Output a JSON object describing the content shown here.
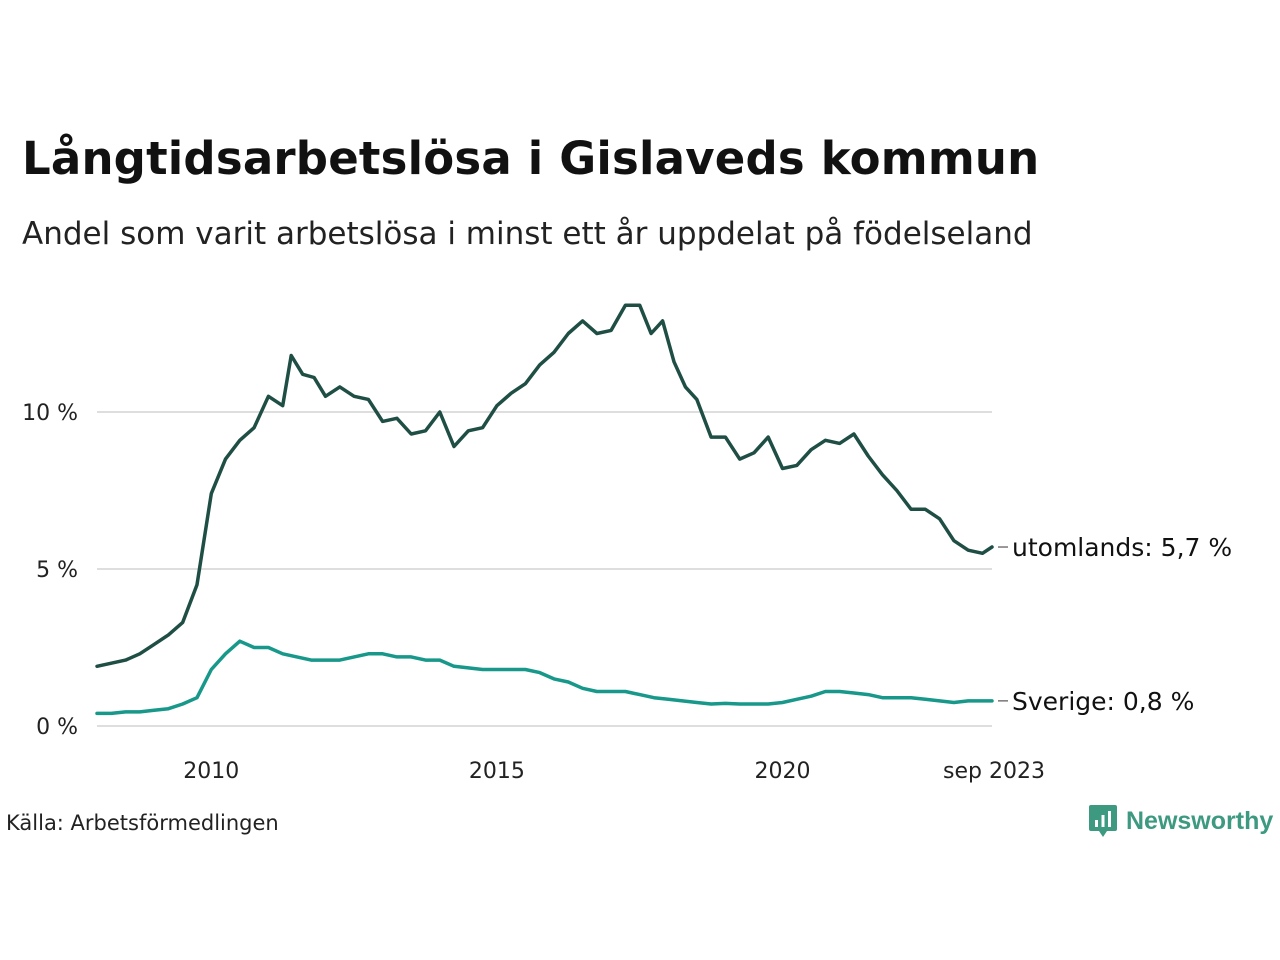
{
  "page": {
    "title": "Långtidsarbetslösa i Gislaveds kommun",
    "subtitle": "Andel som varit arbetslösa i minst ett år uppdelat på födelseland",
    "source": "Källa: Arbetsförmedlingen",
    "brand": "Newsworthy"
  },
  "chart_data": {
    "type": "line",
    "title": "Långtidsarbetslösa i Gislaveds kommun",
    "subtitle": "Andel som varit arbetslösa i minst ett år uppdelat på födelseland",
    "xlabel": "",
    "ylabel": "",
    "x_start": "2008-01",
    "x_end": "2023-09",
    "xlim": [
      2008.0,
      2023.667
    ],
    "ylim": [
      0,
      14
    ],
    "grid": true,
    "y_ticks": [
      {
        "value": 0,
        "label": "0 %"
      },
      {
        "value": 5,
        "label": "5 %"
      },
      {
        "value": 10,
        "label": "10 %"
      }
    ],
    "x_ticks": [
      {
        "value": 2010,
        "label": "2010"
      },
      {
        "value": 2015,
        "label": "2015"
      },
      {
        "value": 2020,
        "label": "2020"
      },
      {
        "value": 2023.667,
        "label": "sep 2023"
      }
    ],
    "series": [
      {
        "name": "utomlands",
        "end_label": "utomlands: 5,7 %",
        "color": "#1f4e45",
        "points": [
          [
            2008.0,
            1.9
          ],
          [
            2008.25,
            2.0
          ],
          [
            2008.5,
            2.1
          ],
          [
            2008.75,
            2.3
          ],
          [
            2009.0,
            2.6
          ],
          [
            2009.25,
            2.9
          ],
          [
            2009.5,
            3.3
          ],
          [
            2009.75,
            4.5
          ],
          [
            2010.0,
            7.4
          ],
          [
            2010.25,
            8.5
          ],
          [
            2010.5,
            9.1
          ],
          [
            2010.75,
            9.5
          ],
          [
            2011.0,
            10.5
          ],
          [
            2011.25,
            10.2
          ],
          [
            2011.4,
            11.8
          ],
          [
            2011.6,
            11.2
          ],
          [
            2011.8,
            11.1
          ],
          [
            2012.0,
            10.5
          ],
          [
            2012.25,
            10.8
          ],
          [
            2012.5,
            10.5
          ],
          [
            2012.75,
            10.4
          ],
          [
            2013.0,
            9.7
          ],
          [
            2013.25,
            9.8
          ],
          [
            2013.5,
            9.3
          ],
          [
            2013.75,
            9.4
          ],
          [
            2014.0,
            10.0
          ],
          [
            2014.25,
            8.9
          ],
          [
            2014.5,
            9.4
          ],
          [
            2014.75,
            9.5
          ],
          [
            2015.0,
            10.2
          ],
          [
            2015.25,
            10.6
          ],
          [
            2015.5,
            10.9
          ],
          [
            2015.75,
            11.5
          ],
          [
            2016.0,
            11.9
          ],
          [
            2016.25,
            12.5
          ],
          [
            2016.5,
            12.9
          ],
          [
            2016.75,
            12.5
          ],
          [
            2017.0,
            12.6
          ],
          [
            2017.25,
            13.4
          ],
          [
            2017.5,
            13.4
          ],
          [
            2017.7,
            12.5
          ],
          [
            2017.9,
            12.9
          ],
          [
            2018.1,
            11.6
          ],
          [
            2018.3,
            10.8
          ],
          [
            2018.5,
            10.4
          ],
          [
            2018.75,
            9.2
          ],
          [
            2019.0,
            9.2
          ],
          [
            2019.25,
            8.5
          ],
          [
            2019.5,
            8.7
          ],
          [
            2019.75,
            9.2
          ],
          [
            2020.0,
            8.2
          ],
          [
            2020.25,
            8.3
          ],
          [
            2020.5,
            8.8
          ],
          [
            2020.75,
            9.1
          ],
          [
            2021.0,
            9.0
          ],
          [
            2021.25,
            9.3
          ],
          [
            2021.5,
            8.6
          ],
          [
            2021.75,
            8.0
          ],
          [
            2022.0,
            7.5
          ],
          [
            2022.25,
            6.9
          ],
          [
            2022.5,
            6.9
          ],
          [
            2022.75,
            6.6
          ],
          [
            2023.0,
            5.9
          ],
          [
            2023.25,
            5.6
          ],
          [
            2023.5,
            5.5
          ],
          [
            2023.667,
            5.7
          ]
        ]
      },
      {
        "name": "Sverige",
        "end_label": "Sverige: 0,8 %",
        "color": "#17988a",
        "points": [
          [
            2008.0,
            0.4
          ],
          [
            2008.25,
            0.4
          ],
          [
            2008.5,
            0.45
          ],
          [
            2008.75,
            0.45
          ],
          [
            2009.0,
            0.5
          ],
          [
            2009.25,
            0.55
          ],
          [
            2009.5,
            0.7
          ],
          [
            2009.75,
            0.9
          ],
          [
            2010.0,
            1.8
          ],
          [
            2010.25,
            2.3
          ],
          [
            2010.5,
            2.7
          ],
          [
            2010.75,
            2.5
          ],
          [
            2011.0,
            2.5
          ],
          [
            2011.25,
            2.3
          ],
          [
            2011.5,
            2.2
          ],
          [
            2011.75,
            2.1
          ],
          [
            2012.0,
            2.1
          ],
          [
            2012.25,
            2.1
          ],
          [
            2012.5,
            2.2
          ],
          [
            2012.75,
            2.3
          ],
          [
            2013.0,
            2.3
          ],
          [
            2013.25,
            2.2
          ],
          [
            2013.5,
            2.2
          ],
          [
            2013.75,
            2.1
          ],
          [
            2014.0,
            2.1
          ],
          [
            2014.25,
            1.9
          ],
          [
            2014.5,
            1.85
          ],
          [
            2014.75,
            1.8
          ],
          [
            2015.0,
            1.8
          ],
          [
            2015.25,
            1.8
          ],
          [
            2015.5,
            1.8
          ],
          [
            2015.75,
            1.7
          ],
          [
            2016.0,
            1.5
          ],
          [
            2016.25,
            1.4
          ],
          [
            2016.5,
            1.2
          ],
          [
            2016.75,
            1.1
          ],
          [
            2017.0,
            1.1
          ],
          [
            2017.25,
            1.1
          ],
          [
            2017.5,
            1.0
          ],
          [
            2017.75,
            0.9
          ],
          [
            2018.0,
            0.85
          ],
          [
            2018.25,
            0.8
          ],
          [
            2018.5,
            0.75
          ],
          [
            2018.75,
            0.7
          ],
          [
            2019.0,
            0.72
          ],
          [
            2019.25,
            0.7
          ],
          [
            2019.5,
            0.7
          ],
          [
            2019.75,
            0.7
          ],
          [
            2020.0,
            0.75
          ],
          [
            2020.25,
            0.85
          ],
          [
            2020.5,
            0.95
          ],
          [
            2020.75,
            1.1
          ],
          [
            2021.0,
            1.1
          ],
          [
            2021.25,
            1.05
          ],
          [
            2021.5,
            1.0
          ],
          [
            2021.75,
            0.9
          ],
          [
            2022.0,
            0.9
          ],
          [
            2022.25,
            0.9
          ],
          [
            2022.5,
            0.85
          ],
          [
            2022.75,
            0.8
          ],
          [
            2023.0,
            0.75
          ],
          [
            2023.25,
            0.8
          ],
          [
            2023.5,
            0.8
          ],
          [
            2023.667,
            0.8
          ]
        ]
      }
    ]
  }
}
